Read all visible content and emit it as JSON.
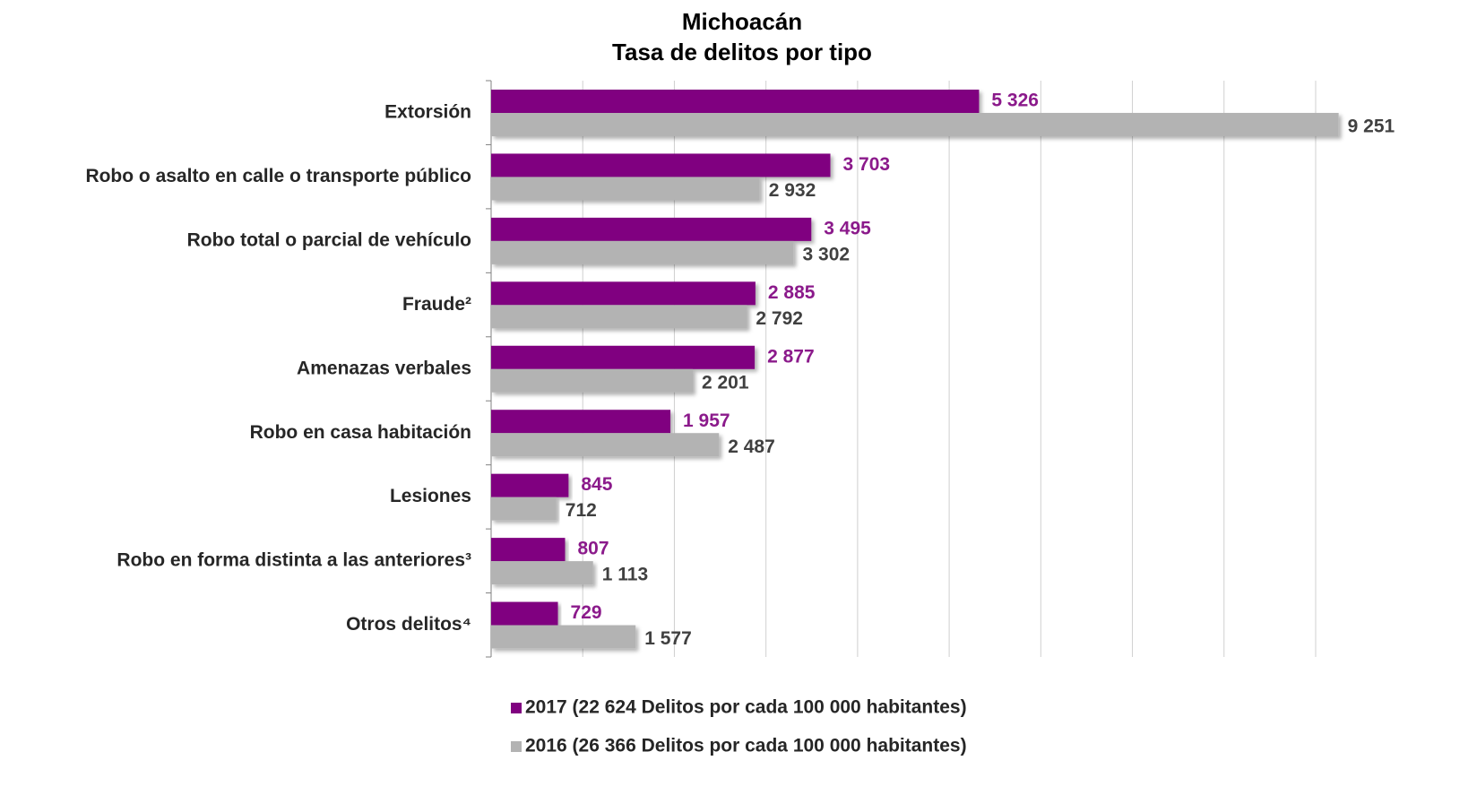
{
  "chart_data": {
    "type": "bar",
    "orientation": "horizontal",
    "title": "Michoacán",
    "subtitle": "Tasa de delitos por tipo",
    "categories": [
      "Extorsión",
      "Robo o asalto en calle o transporte público",
      "Robo total o parcial de vehículo",
      "Fraude²",
      "Amenazas verbales",
      "Robo en casa habitación",
      "Lesiones",
      "Robo en forma distinta a las anteriores³",
      "Otros delitos⁴"
    ],
    "series": [
      {
        "name": "2017 (22 624 Delitos por cada 100 000 habitantes)",
        "color": "#800080",
        "label_color": "#8b1a8b",
        "values": [
          5326,
          3703,
          3495,
          2885,
          2877,
          1957,
          845,
          807,
          729
        ],
        "value_labels": [
          "5 326",
          "3 703",
          "3 495",
          "2 885",
          "2 877",
          "1 957",
          "845",
          "807",
          "729"
        ]
      },
      {
        "name": "2016 (26 366 Delitos por cada 100 000 habitantes)",
        "color": "#b3b3b3",
        "label_color": "#404040",
        "values": [
          9251,
          2932,
          3302,
          2792,
          2201,
          2487,
          712,
          1113,
          1577
        ],
        "value_labels": [
          "9 251",
          "2 932",
          "3 302",
          "2 792",
          "2 201",
          "2 487",
          "712",
          "1 113",
          "1 577"
        ]
      }
    ],
    "xlim": [
      0,
      9000
    ],
    "xticks": [
      0,
      1000,
      2000,
      3000,
      4000,
      5000,
      6000,
      7000,
      8000,
      9000
    ],
    "grid": true
  }
}
